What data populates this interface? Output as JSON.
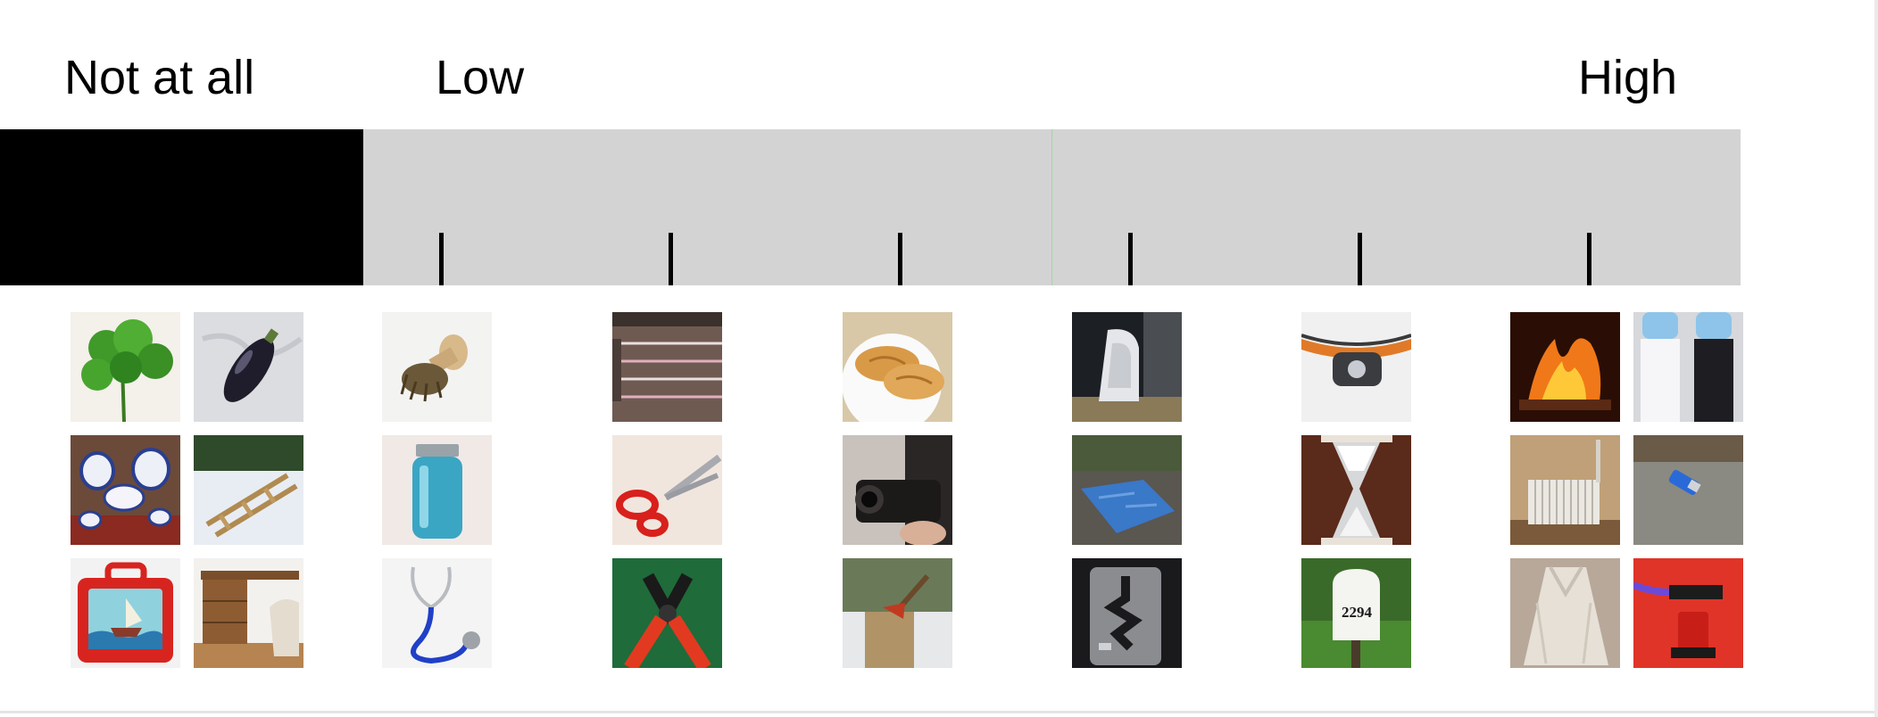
{
  "labels": {
    "not_at_all": "Not at all",
    "low": "Low",
    "high": "High"
  },
  "scale": {
    "tick_count": 6,
    "colors": {
      "not_at_all_segment": "#000000",
      "scale_segment": "#d3d3d3",
      "midline": "#9ed89e",
      "ticks": "#000000"
    }
  },
  "columns": [
    {
      "name": "not-at-all",
      "items": [
        "parsley",
        "eggplant-in-snow",
        "blue-white-china-set",
        "wooden-sled",
        "boat-lunchbox",
        "wooden-desk"
      ]
    },
    {
      "name": "tick-1",
      "items": [
        "scrub-brush",
        "mason-jar",
        "stethoscope"
      ]
    },
    {
      "name": "tick-2",
      "items": [
        "guitar-strings",
        "scissors",
        "wire-cutters"
      ]
    },
    {
      "name": "tick-3",
      "items": [
        "croissants",
        "camcorder",
        "axe-in-stump"
      ]
    },
    {
      "name": "tick-4",
      "items": [
        "clothes-iron",
        "tarp-on-roof",
        "gear-shifter"
      ]
    },
    {
      "name": "tick-5",
      "items": [
        "headlamp",
        "hourglass",
        "mailbox"
      ]
    },
    {
      "name": "high",
      "items": [
        "fireplace",
        "water-cooler",
        "radiator",
        "lighter",
        "fur-coat",
        "blowtorch"
      ]
    }
  ],
  "mailbox_number": "2294"
}
